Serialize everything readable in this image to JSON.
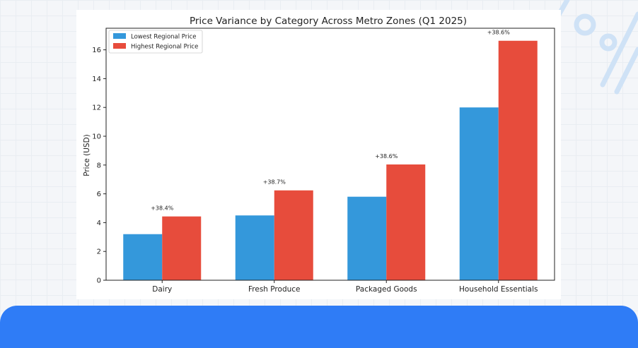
{
  "chart_data": {
    "type": "bar",
    "title": "Price Variance by Category Across Metro Zones (Q1 2025)",
    "xlabel": "",
    "ylabel": "Price (USD)",
    "ylim": [
      0,
      17.5
    ],
    "yticks": [
      0,
      2,
      4,
      6,
      8,
      10,
      12,
      14,
      16
    ],
    "categories": [
      "Dairy",
      "Fresh Produce",
      "Packaged Goods",
      "Household Essentials"
    ],
    "series": [
      {
        "name": "Lowest Regional Price",
        "color": "#3498db",
        "values": [
          3.2,
          4.5,
          5.8,
          12.0
        ]
      },
      {
        "name": "Highest Regional Price",
        "color": "#e74c3c",
        "values": [
          4.43,
          6.24,
          8.04,
          16.63
        ]
      }
    ],
    "annotations": [
      "+38.4%",
      "+38.7%",
      "+38.6%",
      "+38.6%"
    ],
    "legend_position": "top-left",
    "grid": false
  },
  "colors": {
    "page_background": "#f4f6f9",
    "accent_panel": "#2f7cf6",
    "decoration": "#cfe2f6"
  }
}
